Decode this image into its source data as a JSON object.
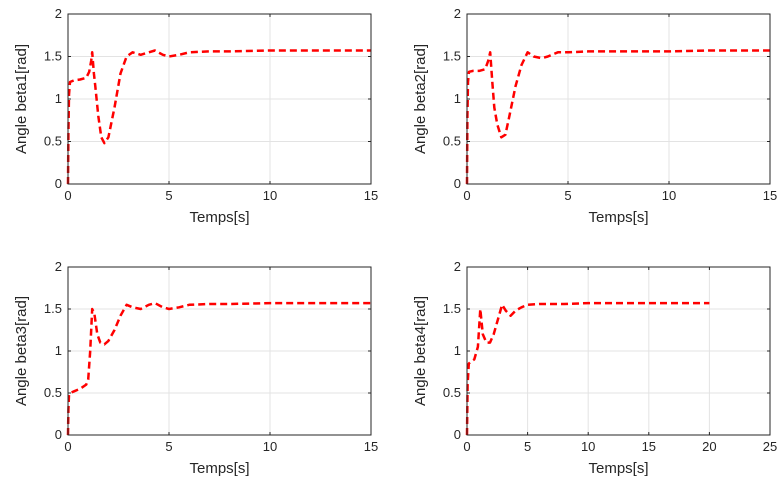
{
  "chart_data": [
    {
      "type": "line",
      "xlabel": "Temps[s]",
      "ylabel": "Angle beta1[rad]",
      "xlim": [
        0,
        15
      ],
      "ylim": [
        0,
        2
      ],
      "xticks": [
        0,
        5,
        10,
        15
      ],
      "yticks": [
        0,
        0.5,
        1,
        1.5,
        2
      ],
      "xtick_labels": [
        "0",
        "5",
        "10",
        "15"
      ],
      "ytick_labels": [
        "0",
        "0.5",
        "1",
        "1.5",
        "2"
      ],
      "grid": true,
      "line_color": "#ff0000",
      "line_style": "dashed",
      "series": [
        {
          "x": [
            0,
            0.02,
            0.05,
            0.1,
            0.3,
            0.6,
            0.9,
            1.05,
            1.15,
            1.2,
            1.28,
            1.35,
            1.5,
            1.65,
            1.8,
            2.0,
            2.3,
            2.6,
            2.9,
            3.2,
            3.6,
            4.0,
            4.3,
            4.7,
            5.0,
            5.5,
            6.0,
            7.0,
            8.0,
            10.0,
            12.0,
            15.0
          ],
          "y": [
            0,
            0.6,
            1.05,
            1.2,
            1.22,
            1.23,
            1.25,
            1.32,
            1.45,
            1.55,
            1.3,
            1.15,
            0.8,
            0.55,
            0.48,
            0.55,
            0.9,
            1.3,
            1.5,
            1.55,
            1.52,
            1.55,
            1.57,
            1.52,
            1.5,
            1.52,
            1.55,
            1.56,
            1.56,
            1.57,
            1.57,
            1.57
          ]
        }
      ]
    },
    {
      "type": "line",
      "xlabel": "Temps[s]",
      "ylabel": "Angle beta2[rad]",
      "xlim": [
        0,
        15
      ],
      "ylim": [
        0,
        2
      ],
      "xticks": [
        0,
        5,
        10,
        15
      ],
      "yticks": [
        0,
        0.5,
        1,
        1.5,
        2
      ],
      "xtick_labels": [
        "0",
        "5",
        "10",
        "15"
      ],
      "ytick_labels": [
        "0",
        "0.5",
        "1",
        "1.5",
        "2"
      ],
      "grid": true,
      "line_color": "#ff0000",
      "line_style": "dashed",
      "series": [
        {
          "x": [
            0,
            0.02,
            0.05,
            0.1,
            0.3,
            0.6,
            0.9,
            1.05,
            1.15,
            1.25,
            1.35,
            1.5,
            1.7,
            1.9,
            2.1,
            2.4,
            2.7,
            3.0,
            3.3,
            3.7,
            4.0,
            4.5,
            5.0,
            6.0,
            8.0,
            10.0,
            12.0,
            15.0
          ],
          "y": [
            0,
            0.8,
            1.2,
            1.32,
            1.33,
            1.33,
            1.35,
            1.45,
            1.55,
            1.2,
            0.9,
            0.7,
            0.55,
            0.58,
            0.8,
            1.15,
            1.4,
            1.55,
            1.5,
            1.48,
            1.5,
            1.55,
            1.55,
            1.56,
            1.56,
            1.56,
            1.57,
            1.57
          ]
        }
      ]
    },
    {
      "type": "line",
      "xlabel": "Temps[s]",
      "ylabel": "Angle beta3[rad]",
      "xlim": [
        0,
        15
      ],
      "ylim": [
        0,
        2
      ],
      "xticks": [
        0,
        5,
        10,
        15
      ],
      "yticks": [
        0,
        0.5,
        1,
        1.5,
        2
      ],
      "xtick_labels": [
        "0",
        "5",
        "10",
        "15"
      ],
      "ytick_labels": [
        "0",
        "0.5",
        "1",
        "1.5",
        "2"
      ],
      "grid": true,
      "line_color": "#ff0000",
      "line_style": "dashed",
      "series": [
        {
          "x": [
            0,
            0.02,
            0.05,
            0.1,
            0.3,
            0.6,
            0.9,
            1.0,
            1.1,
            1.2,
            1.3,
            1.45,
            1.6,
            1.8,
            2.0,
            2.3,
            2.6,
            2.9,
            3.2,
            3.6,
            4.0,
            4.3,
            4.7,
            5.0,
            5.5,
            6.0,
            7.0,
            8.0,
            10.0,
            12.0,
            15.0
          ],
          "y": [
            0,
            0.3,
            0.48,
            0.5,
            0.52,
            0.55,
            0.6,
            0.66,
            1.0,
            1.5,
            1.45,
            1.2,
            1.1,
            1.08,
            1.12,
            1.25,
            1.42,
            1.55,
            1.52,
            1.5,
            1.55,
            1.57,
            1.52,
            1.5,
            1.52,
            1.55,
            1.56,
            1.56,
            1.57,
            1.57,
            1.57
          ]
        }
      ]
    },
    {
      "type": "line",
      "xlabel": "Temps[s]",
      "ylabel": "Angle beta4[rad]",
      "xlim": [
        0,
        25
      ],
      "ylim": [
        0,
        2
      ],
      "xticks": [
        0,
        5,
        10,
        15,
        20,
        25
      ],
      "yticks": [
        0,
        0.5,
        1,
        1.5,
        2
      ],
      "xtick_labels": [
        "0",
        "5",
        "10",
        "15",
        "20",
        "25"
      ],
      "ytick_labels": [
        "0",
        "0.5",
        "1",
        "1.5",
        "2"
      ],
      "grid": true,
      "line_color": "#ff0000",
      "line_style": "dashed",
      "series": [
        {
          "x": [
            0,
            0.05,
            0.15,
            0.3,
            0.6,
            0.9,
            1.1,
            1.3,
            1.6,
            1.9,
            2.2,
            2.6,
            2.9,
            3.2,
            3.6,
            4.0,
            4.5,
            5.0,
            6.0,
            8.0,
            10.0,
            15.0,
            20.0
          ],
          "y": [
            0,
            0.6,
            0.85,
            0.87,
            0.9,
            1.05,
            1.5,
            1.2,
            1.1,
            1.1,
            1.2,
            1.4,
            1.55,
            1.48,
            1.42,
            1.48,
            1.52,
            1.55,
            1.56,
            1.56,
            1.57,
            1.57,
            1.57
          ]
        }
      ]
    }
  ]
}
